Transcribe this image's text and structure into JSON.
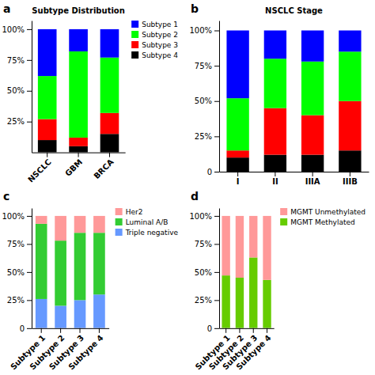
{
  "chart_data": [
    {
      "type": "bar",
      "title": "Subtype Distribution",
      "stacked": true,
      "grid": false,
      "legend": "upper right",
      "annotations": [
        "a"
      ],
      "categories": [
        "NSCLC",
        "GBM",
        "BRCA"
      ],
      "series": [
        {
          "name": "Subtype 4",
          "color": "#000000",
          "values": [
            10,
            5,
            15
          ]
        },
        {
          "name": "Subtype 3",
          "color": "#FF0000",
          "values": [
            17,
            7,
            17
          ]
        },
        {
          "name": "Subtype 2",
          "color": "#00FF00",
          "values": [
            35,
            70,
            45
          ]
        },
        {
          "name": "Subtype 1",
          "color": "#0000FF",
          "values": [
            38,
            18,
            23
          ]
        }
      ],
      "ylim": [
        0,
        107
      ],
      "yticks": [
        {
          "value": 25,
          "label": "25%"
        },
        {
          "value": 50,
          "label": "50%"
        },
        {
          "value": 75,
          "label": "75%"
        },
        {
          "value": 100,
          "label": "100%"
        }
      ]
    },
    {
      "type": "bar",
      "title": "NSCLC Stage",
      "stacked": true,
      "grid": false,
      "annotations": [
        "b"
      ],
      "categories": [
        "I",
        "II",
        "IIIA",
        "IIIB"
      ],
      "series": [
        {
          "color": "#000000",
          "values": [
            10,
            12,
            12,
            15
          ]
        },
        {
          "color": "#FF0000",
          "values": [
            5,
            33,
            28,
            35
          ]
        },
        {
          "color": "#00FF00",
          "values": [
            37,
            35,
            38,
            35
          ]
        },
        {
          "color": "#0000FF",
          "values": [
            48,
            20,
            22,
            15
          ]
        }
      ],
      "ylim": [
        0,
        107
      ],
      "yticks": [
        0,
        {
          "value": 25,
          "label": "25%"
        },
        {
          "value": 50,
          "label": "50%"
        },
        {
          "value": 75,
          "label": "75%"
        },
        {
          "value": 100,
          "label": "100%"
        }
      ]
    },
    {
      "type": "bar",
      "stacked": true,
      "grid": false,
      "legend": "upper right",
      "annotations": [
        "c"
      ],
      "categories": [
        "Subtype 1",
        "Subtype 2",
        "Subtype 3",
        "Subtype 4"
      ],
      "series": [
        {
          "name": "Triple negative",
          "color": "#6699FF",
          "values": [
            26,
            20,
            25,
            30
          ]
        },
        {
          "name": "Luminal A/B",
          "color": "#33CC33",
          "values": [
            67,
            58,
            60,
            55
          ]
        },
        {
          "name": "Her2",
          "color": "#FF9999",
          "values": [
            7,
            22,
            15,
            15
          ]
        }
      ],
      "ylim": [
        0,
        107
      ],
      "yticks": [
        0,
        {
          "value": 25,
          "label": "25%"
        },
        {
          "value": 50,
          "label": "50%"
        },
        {
          "value": 75,
          "label": "75%"
        },
        {
          "value": 100,
          "label": "100%"
        }
      ]
    },
    {
      "type": "bar",
      "stacked": true,
      "grid": false,
      "legend": "upper right",
      "annotations": [
        "d"
      ],
      "categories": [
        "Subtype 1",
        "Subtype 2",
        "Subtype 3",
        "Subtype 4"
      ],
      "series": [
        {
          "name": "MGMT Methylated",
          "color": "#66CC00",
          "values": [
            47,
            45,
            63,
            43
          ]
        },
        {
          "name": "MGMT Unmethylated",
          "color": "#FF9999",
          "values": [
            53,
            55,
            37,
            57
          ]
        }
      ],
      "ylim": [
        0,
        107
      ],
      "yticks": [
        0,
        {
          "value": 25,
          "label": "25%"
        },
        {
          "value": 50,
          "label": "50%"
        },
        {
          "value": 75,
          "label": "75%"
        },
        {
          "value": 100,
          "label": "100%"
        }
      ]
    }
  ]
}
